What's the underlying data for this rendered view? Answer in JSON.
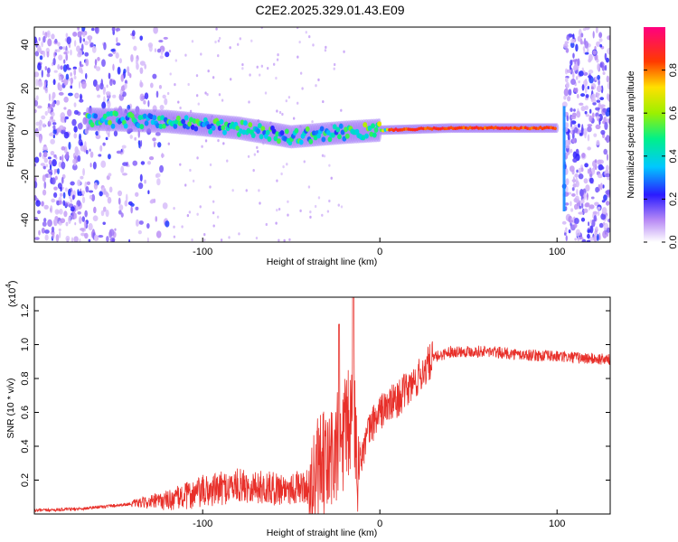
{
  "figure_title": "C2E2.2025.329.01.43.E09",
  "colors": {
    "snr_line": "#e8302a",
    "axis": "#000000"
  },
  "chart_data": [
    {
      "type": "heatmap",
      "name": "spectrogram",
      "xlabel": "Height of straight line (km)",
      "ylabel": "Frequency (Hz)",
      "xlim": [
        -195,
        130
      ],
      "ylim": [
        -50,
        48
      ],
      "xticks": [
        -100,
        0,
        100
      ],
      "yticks": [
        -40,
        -20,
        0,
        20,
        40
      ],
      "colorbar": {
        "label": "Normalized spectral amplitude",
        "range": [
          0,
          1
        ],
        "ticks": [
          "0.0",
          "0.2",
          "0.4",
          "0.6",
          "0.8"
        ],
        "tick_values": [
          0,
          0.2,
          0.4,
          0.6,
          0.8
        ]
      },
      "main_signal_track": {
        "x": [
          -160,
          -120,
          -80,
          -50,
          -20,
          0,
          40,
          80,
          98
        ],
        "freq_hz": [
          6,
          5,
          2,
          -2,
          0,
          1,
          2,
          2,
          2
        ]
      },
      "noise_regions_km": [
        [
          -195,
          -120
        ],
        [
          104,
          130
        ]
      ],
      "vertical_artifact_km": 104
    },
    {
      "type": "line",
      "name": "snr",
      "xlabel": "Height of straight line (km)",
      "ylabel": "SNR (10 * v/v)",
      "scale_label": "(x10",
      "scale_exponent": "4",
      "xlim": [
        -195,
        130
      ],
      "ylim": [
        0,
        1.28
      ],
      "xticks": [
        -100,
        0,
        100
      ],
      "yticks": [
        0.2,
        0.4,
        0.6,
        0.8,
        1.0,
        1.2
      ],
      "ytick_labels": [
        "0.2",
        "0.4",
        "0.6",
        "0.8",
        "1.0",
        "1.2"
      ],
      "series": [
        {
          "name": "SNR",
          "x": [
            -195,
            -170,
            -140,
            -120,
            -100,
            -80,
            -60,
            -40,
            -30,
            -20,
            -15,
            -12,
            -5,
            0,
            10,
            20,
            30,
            40,
            60,
            80,
            100,
            130
          ],
          "y": [
            0.02,
            0.03,
            0.06,
            0.08,
            0.13,
            0.17,
            0.15,
            0.16,
            0.28,
            0.45,
            0.6,
            0.3,
            0.52,
            0.6,
            0.68,
            0.78,
            0.92,
            0.96,
            0.96,
            0.94,
            0.93,
            0.91
          ]
        }
      ]
    }
  ]
}
